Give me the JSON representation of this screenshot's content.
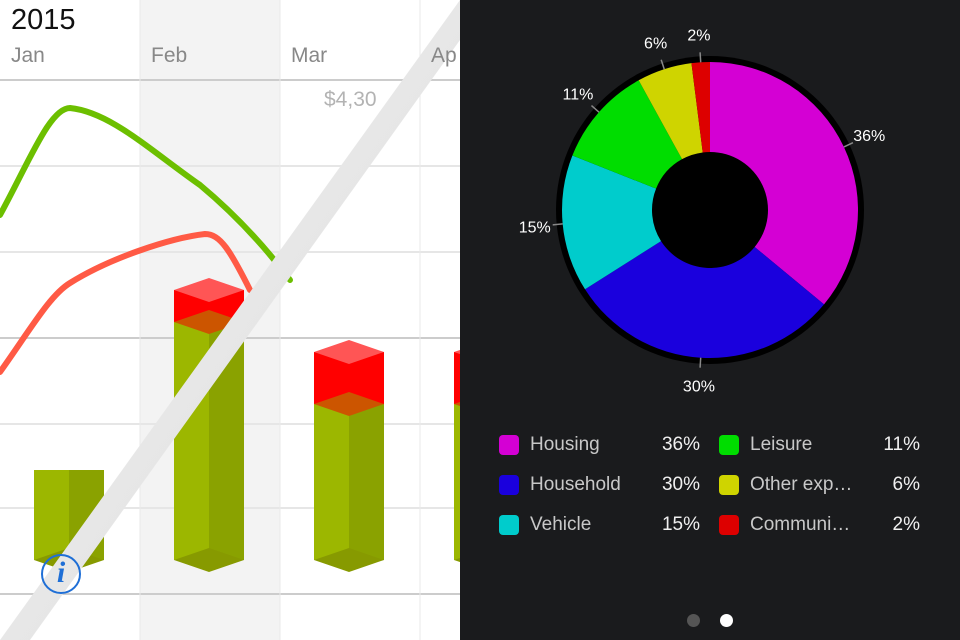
{
  "left_panel": {
    "year": "2015",
    "months": [
      "Jan",
      "Feb",
      "Mar",
      "Ap"
    ],
    "tooltip_amount": "$4,30",
    "series_colors": {
      "line_green": "#6cbf00",
      "line_red": "#ff5a45",
      "bar_green": "#9cb700",
      "bar_red": "#ff0000"
    }
  },
  "chart_data": {
    "type": "pie",
    "donut": true,
    "title": "",
    "slices": [
      {
        "name": "Housing",
        "value": 36,
        "label": "36%",
        "color": "#d400d4"
      },
      {
        "name": "Household",
        "value": 30,
        "label": "30%",
        "color": "#1a00dd"
      },
      {
        "name": "Vehicle",
        "value": 15,
        "label": "15%",
        "color": "#00cccc"
      },
      {
        "name": "Leisure",
        "value": 11,
        "label": "11%",
        "color": "#00dd00"
      },
      {
        "name": "Other exp…",
        "value": 6,
        "label": "6%",
        "color": "#cfd400"
      },
      {
        "name": "Communi…",
        "value": 2,
        "label": "2%",
        "color": "#dd0000"
      }
    ]
  },
  "legend": {
    "items": [
      {
        "name": "Housing",
        "value": "36%"
      },
      {
        "name": "Household",
        "value": "30%"
      },
      {
        "name": "Vehicle",
        "value": "15%"
      },
      {
        "name": "Leisure",
        "value": "11%"
      },
      {
        "name": "Other exp…",
        "value": "6%"
      },
      {
        "name": "Communi…",
        "value": "2%"
      }
    ]
  },
  "page_indicator": {
    "pages": 2,
    "current": 2
  },
  "icons": {
    "info": "info-icon"
  },
  "info_glyph": "i"
}
